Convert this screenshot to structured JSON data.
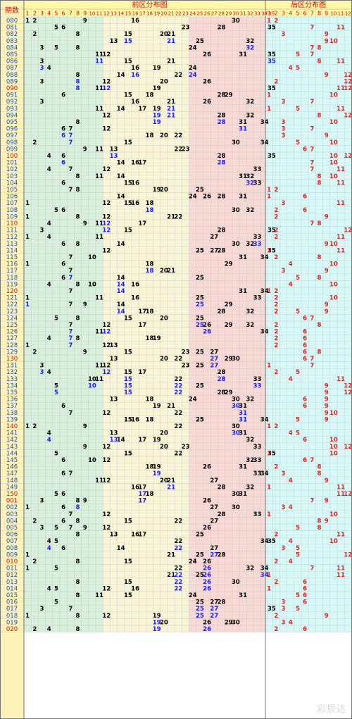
{
  "chart_data": {
    "type": "table",
    "header": {
      "period_label": "期数",
      "front_label": "前区分布图",
      "back_label": "后区分布图"
    },
    "front_numbers": [
      1,
      2,
      3,
      4,
      5,
      6,
      7,
      8,
      9,
      10,
      11,
      12,
      13,
      14,
      15,
      16,
      17,
      18,
      19,
      20,
      21,
      22,
      23,
      24,
      25,
      26,
      27,
      28,
      29,
      30,
      31,
      32,
      33,
      34,
      35
    ],
    "back_numbers": [
      1,
      2,
      3,
      4,
      5,
      6,
      7,
      8,
      9,
      10,
      11,
      12
    ],
    "zone_colors": [
      "#d8f0dc",
      "#faf4d6",
      "#f8d8d4"
    ],
    "back_color": "#d8f8f8",
    "header_bg": "#fff8a8",
    "period_bg": "#fdf3b8",
    "normal_text": "#000000",
    "repeat_text": "#1a1aff",
    "back_text": "#e02020",
    "periods": [
      {
        "p": "080",
        "f": [
          1,
          2,
          9,
          16,
          30
        ],
        "b": [
          1,
          2
        ]
      },
      {
        "p": "081",
        "f": [
          5,
          6,
          23,
          28,
          35
        ],
        "b": [
          7,
          11
        ]
      },
      {
        "p": "082",
        "f": [
          2,
          8,
          15,
          20,
          21
        ],
        "b": [
          3,
          9
        ]
      },
      {
        "p": "083",
        "f": [
          13,
          15,
          21,
          25,
          32
        ],
        "b": [
          9,
          10
        ]
      },
      {
        "p": "084",
        "f": [
          3,
          5,
          8,
          24,
          32
        ],
        "b": [
          7,
          8
        ]
      },
      {
        "p": "085",
        "f": [
          11,
          12,
          26,
          31,
          35
        ],
        "b": [
          5,
          7
        ]
      },
      {
        "p": "086",
        "f": [
          3,
          11,
          15,
          21,
          35
        ],
        "b": [
          8,
          11
        ]
      },
      {
        "p": "087",
        "f": [
          3,
          4,
          16,
          19,
          24
        ],
        "b": [
          4,
          5
        ]
      },
      {
        "p": "088",
        "f": [
          8,
          14,
          16,
          22,
          24
        ],
        "b": [
          9,
          12
        ]
      },
      {
        "p": "089",
        "f": [
          3,
          8,
          12,
          20,
          26
        ],
        "b": [
          2,
          12
        ]
      },
      {
        "p": "090",
        "f": [
          8,
          11,
          12,
          19,
          35
        ],
        "b": [
          11,
          12
        ]
      },
      {
        "p": "091",
        "f": [
          6,
          15,
          18,
          28,
          29
        ],
        "b": [
          1,
          10
        ]
      },
      {
        "p": "092",
        "f": [
          3,
          16,
          21,
          26,
          32
        ],
        "b": [
          3,
          7
        ]
      },
      {
        "p": "093",
        "f": [
          11,
          14,
          17,
          19,
          21
        ],
        "b": [
          1,
          5,
          11
        ]
      },
      {
        "p": "094",
        "f": [
          12,
          19,
          21,
          28,
          32
        ],
        "b": [
          8,
          12
        ]
      },
      {
        "p": "095",
        "f": [
          8,
          19,
          28,
          31,
          34
        ],
        "b": [
          3,
          10
        ]
      },
      {
        "p": "096",
        "f": [
          6,
          7,
          12,
          31
        ],
        "b": [
          3,
          7
        ]
      },
      {
        "p": "097",
        "f": [
          6,
          7,
          18,
          20,
          22
        ],
        "b": [
          3,
          9
        ]
      },
      {
        "p": "098",
        "f": [
          2,
          7,
          15,
          30,
          34
        ],
        "b": [
          5,
          10
        ]
      },
      {
        "p": "099",
        "f": [
          9,
          11,
          13,
          22,
          23
        ],
        "b": [
          6,
          7
        ]
      },
      {
        "p": "100",
        "f": [
          4,
          6,
          13,
          28,
          35
        ],
        "b": [
          10,
          12
        ]
      },
      {
        "p": "101",
        "f": [
          6,
          14,
          16,
          17,
          28
        ],
        "b": [
          7,
          10
        ]
      },
      {
        "p": "102",
        "f": [
          4,
          7,
          12,
          33
        ],
        "b": [
          7,
          11
        ]
      },
      {
        "p": "103",
        "f": [
          8,
          11,
          14,
          31,
          32
        ],
        "b": [
          8,
          10
        ]
      },
      {
        "p": "104",
        "f": [
          6,
          15,
          16,
          32,
          33
        ],
        "b": [
          8,
          11
        ]
      },
      {
        "p": "105",
        "f": [
          7,
          8,
          19,
          20,
          25
        ],
        "b": [
          1,
          2
        ]
      },
      {
        "p": "106",
        "f": [
          14,
          24,
          26,
          28,
          31
        ],
        "b": [
          1,
          6
        ]
      },
      {
        "p": "107",
        "f": [
          1,
          12,
          15,
          16,
          18
        ],
        "b": [
          3,
          11
        ]
      },
      {
        "p": "108",
        "f": [
          5,
          6,
          18,
          30,
          32
        ],
        "b": [
          2,
          6
        ]
      },
      {
        "p": "109",
        "f": [
          1,
          8,
          12,
          21,
          22
        ],
        "b": [
          2,
          9
        ]
      },
      {
        "p": "110",
        "f": [
          4,
          9,
          11,
          12,
          17
        ],
        "b": [
          7,
          8
        ]
      },
      {
        "p": "111",
        "f": [
          3,
          12,
          15,
          28,
          35
        ],
        "b": [
          2,
          12
        ]
      },
      {
        "p": "112",
        "f": [
          1,
          4,
          11,
          27,
          33
        ],
        "b": [
          2,
          11
        ]
      },
      {
        "p": "113",
        "f": [
          6,
          8,
          14,
          30,
          32,
          33
        ],
        "b": [
          9,
          10
        ]
      },
      {
        "p": "114",
        "f": [
          12,
          25,
          27,
          28,
          35
        ],
        "b": [
          1,
          11
        ]
      },
      {
        "p": "115",
        "f": [
          7,
          10,
          31,
          34
        ],
        "b": [
          2,
          8
        ]
      },
      {
        "p": "116",
        "f": [
          1,
          6,
          18,
          29
        ],
        "b": [
          4,
          10
        ]
      },
      {
        "p": "117",
        "f": [
          7,
          18,
          20,
          21
        ],
        "b": [
          3,
          9
        ]
      },
      {
        "p": "118",
        "f": [
          6,
          7,
          14,
          25
        ],
        "b": [
          5,
          8
        ]
      },
      {
        "p": "119",
        "f": [
          4,
          8,
          10,
          14,
          16
        ],
        "b": [
          4,
          10
        ]
      },
      {
        "p": "120",
        "f": [
          7,
          14,
          31,
          34
        ],
        "b": [
          1,
          2
        ]
      },
      {
        "p": "121",
        "f": [
          1,
          11,
          16,
          25,
          33
        ],
        "b": [
          2,
          10
        ]
      },
      {
        "p": "122",
        "f": [
          1,
          7,
          9,
          14,
          25,
          29
        ],
        "b": [
          2,
          9
        ]
      },
      {
        "p": "123",
        "f": [
          14,
          17,
          18,
          28,
          32
        ],
        "b": [
          2,
          5,
          9
        ]
      },
      {
        "p": "124",
        "f": [
          5,
          8,
          15,
          20,
          25
        ],
        "b": [
          6,
          7
        ]
      },
      {
        "p": "125",
        "f": [
          7,
          12,
          17,
          25,
          26,
          29,
          32
        ],
        "b": [
          2,
          8
        ]
      },
      {
        "p": "126",
        "f": [
          7,
          11,
          12,
          26,
          34
        ],
        "b": [
          2,
          6
        ]
      },
      {
        "p": "127",
        "f": [
          4,
          7,
          8,
          18,
          19
        ],
        "b": [
          2,
          6
        ]
      },
      {
        "p": "128",
        "f": [
          1,
          7,
          12,
          13
        ],
        "b": [
          2,
          6
        ]
      },
      {
        "p": "129",
        "f": [
          2,
          9,
          15,
          23,
          25,
          27
        ],
        "b": [
          6,
          8
        ]
      },
      {
        "p": "130",
        "f": [
          13,
          20,
          22,
          27,
          29,
          30
        ],
        "b": [
          6,
          7
        ]
      },
      {
        "p": "131",
        "f": [
          3,
          11,
          12,
          23,
          25,
          27
        ],
        "b": [
          1,
          7
        ]
      },
      {
        "p": "132",
        "f": [
          3,
          4,
          12,
          15,
          17,
          28
        ],
        "b": [
          2,
          5
        ]
      },
      {
        "p": "133",
        "f": [
          10,
          11,
          15,
          22,
          28,
          33
        ],
        "b": [
          4,
          11
        ]
      },
      {
        "p": "134",
        "f": [
          5,
          10,
          15,
          22,
          25,
          33
        ],
        "b": [
          9,
          12
        ]
      },
      {
        "p": "135",
        "f": [
          5,
          15,
          22,
          28,
          29
        ],
        "b": [
          9,
          12
        ]
      },
      {
        "p": "136",
        "f": [
          13,
          18,
          24,
          30,
          32
        ],
        "b": [
          6,
          9
        ]
      },
      {
        "p": "137",
        "f": [
          6,
          19,
          21,
          30,
          31
        ],
        "b": [
          6,
          9
        ]
      },
      {
        "p": "138",
        "f": [
          7,
          12,
          22,
          31
        ],
        "b": [
          9,
          10
        ]
      },
      {
        "p": "139",
        "f": [
          15,
          16,
          18,
          25,
          31,
          34
        ],
        "b": [
          5,
          9
        ]
      },
      {
        "p": "140",
        "f": [
          1,
          2,
          9,
          22,
          30
        ],
        "b": [
          1,
          2
        ]
      },
      {
        "p": "141",
        "f": [
          4,
          13,
          20,
          30,
          31
        ],
        "b": [
          4,
          5
        ]
      },
      {
        "p": "142",
        "f": [
          4,
          13,
          14,
          17,
          19,
          32
        ],
        "b": [
          6,
          10
        ]
      },
      {
        "p": "143",
        "f": [
          9,
          12,
          20,
          23,
          33
        ],
        "b": [
          10,
          12
        ]
      },
      {
        "p": "144",
        "f": [
          5,
          15,
          22,
          35
        ],
        "b": [
          1,
          10
        ]
      },
      {
        "p": "145",
        "f": [
          6,
          10,
          12,
          32,
          33
        ],
        "b": [
          6,
          7
        ]
      },
      {
        "p": "146",
        "f": [
          18,
          19,
          26,
          31
        ],
        "b": [
          2,
          8
        ]
      },
      {
        "p": "147",
        "f": [
          6,
          7,
          19,
          33,
          34
        ],
        "b": [
          3,
          8
        ]
      },
      {
        "p": "148",
        "f": [
          11,
          12,
          20,
          21,
          27
        ],
        "b": [
          4,
          9
        ]
      },
      {
        "p": "149",
        "f": [
          16,
          17,
          21,
          28,
          32
        ],
        "b": [
          1,
          11
        ]
      },
      {
        "p": "150",
        "f": [
          5,
          6,
          17,
          18,
          30,
          31
        ],
        "b": [
          11,
          12
        ]
      },
      {
        "p": "001",
        "f": [
          3,
          8,
          9,
          17,
          26
        ],
        "b": [
          7,
          9
        ]
      },
      {
        "p": "002",
        "f": [
          1,
          6,
          8,
          27,
          30
        ],
        "b": [
          3,
          4
        ]
      },
      {
        "p": "003",
        "f": [
          7,
          12,
          28,
          33
        ],
        "b": [
          1,
          10
        ]
      },
      {
        "p": "004",
        "f": [
          2,
          6,
          8,
          15,
          22,
          27
        ],
        "b": [
          8,
          9
        ]
      },
      {
        "p": "005",
        "f": [
          3,
          5,
          7,
          9,
          12,
          26
        ],
        "b": [
          5,
          8
        ]
      },
      {
        "p": "006",
        "f": [
          8,
          13,
          16,
          17,
          25
        ],
        "b": [
          2,
          11
        ]
      },
      {
        "p": "007",
        "f": [
          4,
          5,
          22,
          34,
          35
        ],
        "b": [
          4,
          10
        ]
      },
      {
        "p": "008",
        "f": [
          4,
          6,
          14,
          22,
          27
        ],
        "b": [
          3,
          5
        ]
      },
      {
        "p": "009",
        "f": [
          1,
          21,
          25,
          27,
          28
        ],
        "b": [
          5,
          12
        ]
      },
      {
        "p": "010",
        "f": [
          2,
          8,
          15,
          24,
          26
        ],
        "b": [
          2,
          4
        ]
      },
      {
        "p": "011",
        "f": [
          1,
          5,
          22,
          26,
          32,
          34
        ],
        "b": [
          7,
          11
        ]
      },
      {
        "p": "012",
        "f": [
          21,
          22,
          25,
          26,
          34
        ],
        "b": [
          1,
          11
        ]
      },
      {
        "p": "013",
        "f": [
          8,
          15,
          22,
          26,
          30
        ],
        "b": [
          2,
          6
        ]
      },
      {
        "p": "014",
        "f": [
          4,
          5,
          12,
          16,
          22,
          26
        ],
        "b": [
          1,
          6
        ]
      },
      {
        "p": "015",
        "f": [
          8,
          11,
          15,
          24,
          31
        ],
        "b": [
          5,
          6
        ]
      },
      {
        "p": "016",
        "f": [
          5,
          25,
          27,
          28
        ],
        "b": [
          3,
          6
        ]
      },
      {
        "p": "017",
        "f": [
          3,
          7,
          25,
          27,
          35
        ],
        "b": [
          3,
          5
        ]
      },
      {
        "p": "018",
        "f": [
          1,
          8,
          12,
          19,
          25,
          27
        ],
        "b": [
          2,
          9
        ]
      },
      {
        "p": "019",
        "f": [
          19,
          20,
          26,
          29,
          30
        ],
        "b": [
          3,
          4
        ]
      },
      {
        "p": "020",
        "f": [
          2,
          4,
          8,
          19,
          26
        ],
        "b": [
          2,
          6
        ]
      }
    ]
  }
}
